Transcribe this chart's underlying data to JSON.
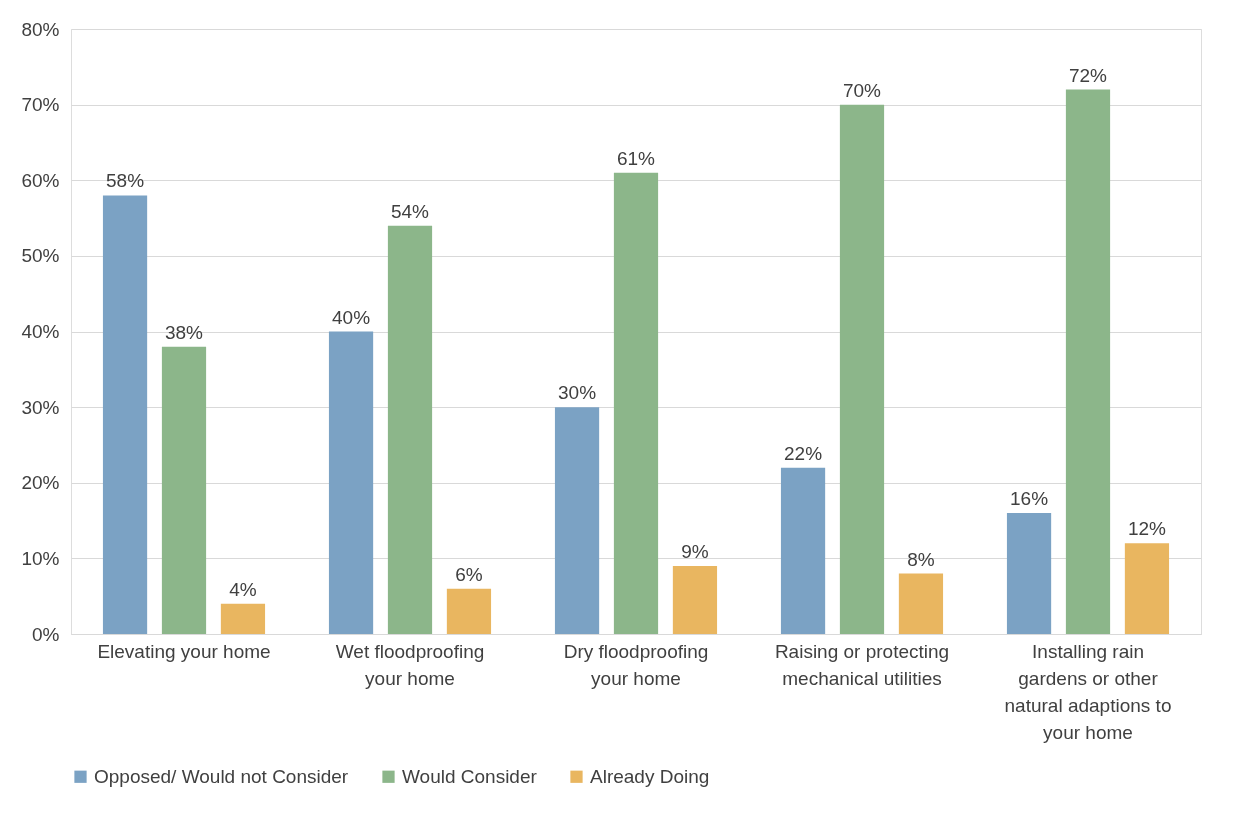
{
  "chart_data": {
    "type": "bar",
    "categories": [
      "Elevating your home",
      "Wet floodproofing your home",
      "Dry floodproofing your home",
      "Raising or protecting mechanical utilities",
      "Installing rain gardens or other natural adaptions to your home"
    ],
    "series": [
      {
        "name": "Opposed/ Would not Consider",
        "color": "#7ba2c4",
        "values": [
          58,
          40,
          30,
          22,
          16
        ],
        "value_labels": [
          "58%",
          "40%",
          "30%",
          "22%",
          "16%"
        ]
      },
      {
        "name": "Would Consider",
        "color": "#8cb68a",
        "values": [
          38,
          54,
          61,
          70,
          72
        ],
        "value_labels": [
          "38%",
          "54%",
          "61%",
          "70%",
          "72%"
        ]
      },
      {
        "name": "Already Doing",
        "color": "#e9b660",
        "values": [
          4,
          6,
          9,
          8,
          12
        ],
        "value_labels": [
          "4%",
          "6%",
          "9%",
          "8%",
          "12%"
        ]
      }
    ],
    "ylim": [
      0,
      80
    ],
    "yticks": [
      {
        "value": 0,
        "label": "0%"
      },
      {
        "value": 10,
        "label": "10%"
      },
      {
        "value": 20,
        "label": "20%"
      },
      {
        "value": 30,
        "label": "30%"
      },
      {
        "value": 40,
        "label": "40%"
      },
      {
        "value": 50,
        "label": "50%"
      },
      {
        "value": 60,
        "label": "60%"
      },
      {
        "value": 70,
        "label": "70%"
      },
      {
        "value": 80,
        "label": "80%"
      }
    ],
    "grid": "y",
    "legend": "bottom"
  }
}
